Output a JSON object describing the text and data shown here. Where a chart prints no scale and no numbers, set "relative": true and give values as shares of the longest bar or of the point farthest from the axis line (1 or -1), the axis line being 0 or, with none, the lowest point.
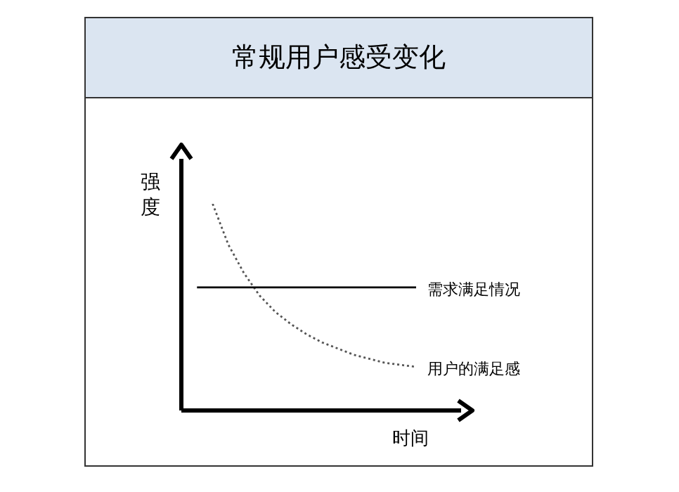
{
  "chart_data": {
    "type": "line",
    "title": "常规用户感受变化",
    "xlabel": "时间",
    "ylabel": "强度",
    "relative": true,
    "legend": false,
    "marker": "none",
    "categories": [
      null,
      null,
      null,
      null,
      null,
      null,
      null,
      null,
      null,
      null,
      null,
      null,
      null,
      null,
      null,
      null
    ],
    "series": [
      {
        "name": "需求满足情况",
        "color": "#000000",
        "line_style": "solid",
        "values": [
          null,
          0.59,
          0.59,
          0.59,
          0.59,
          0.59,
          0.59,
          0.59,
          0.59,
          0.59,
          0.59,
          0.59,
          0.59,
          0.59,
          0.59,
          0.59
        ]
      },
      {
        "name": "用户的满足感",
        "color": "#555555",
        "line_style": "dotted",
        "values": [
          null,
          null,
          1,
          0.8,
          0.66,
          0.55,
          0.47,
          0.41,
          0.36,
          0.32,
          0.29,
          0.26,
          0.24,
          0.22,
          0.21,
          0.2
        ]
      }
    ]
  }
}
